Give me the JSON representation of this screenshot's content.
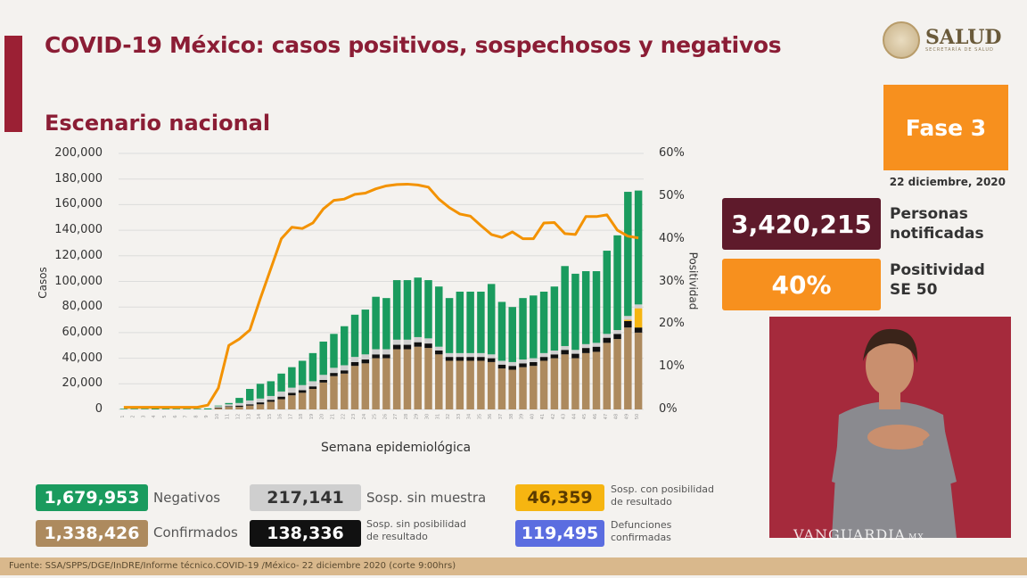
{
  "header": {
    "title": "COVID-19 México: casos positivos, sospechosos y negativos",
    "subtitle": "Escenario nacional",
    "logo_text": "SALUD",
    "logo_small": "SECRETARÍA DE SALUD"
  },
  "side_panel": {
    "phase": "Fase 3",
    "date": "22 diciembre, 2020",
    "notified_value": "3,420,215",
    "notified_label_1": "Personas",
    "notified_label_2": "notificadas",
    "positivity_value": "40%",
    "positivity_label_1": "Positividad",
    "positivity_label_2": "SE 50",
    "watermark": "VANGUARDIA",
    "watermark_suffix": "MX"
  },
  "legend": [
    {
      "value": "1,679,953",
      "label": "Negativos",
      "color": "#1a9b5e"
    },
    {
      "value": "217,141",
      "label": "Sosp. sin muestra",
      "color": "#cfcfcf"
    },
    {
      "value": "46,359",
      "label": "Sosp. con posibilidad de resultado",
      "label_1": "Sosp. con posibilidad",
      "label_2": "de resultado",
      "color": "#f6b511"
    },
    {
      "value": "1,338,426",
      "label": "Confirmados",
      "color": "#ad8a5e"
    },
    {
      "value": "138,336",
      "label": "Sosp. sin posibilidad de resultado",
      "label_1": "Sosp. sin posibilidad",
      "label_2": "de resultado",
      "color": "#111111"
    },
    {
      "value": "119,495",
      "label": "Defunciones confirmadas",
      "label_1": "Defunciones",
      "label_2": "confirmadas",
      "color": "#5b6de0"
    }
  ],
  "footer": "Fuente: SSA/SPPS/DGE/InDRE/Informe técnico.COVID-19 /México- 22 diciembre 2020 (corte 9:00hrs)",
  "chart_data": {
    "type": "bar",
    "stacked": true,
    "xlabel": "Semana epidemiológica",
    "ylabel": "Casos",
    "y2label": "Positividad",
    "ylim": [
      0,
      200000
    ],
    "y2lim": [
      0,
      60
    ],
    "yticks": [
      "0",
      "20,000",
      "40,000",
      "60,000",
      "80,000",
      "100,000",
      "120,000",
      "140,000",
      "160,000",
      "180,000",
      "200,000"
    ],
    "y2ticks": [
      "0%",
      "10%",
      "20%",
      "30%",
      "40%",
      "50%",
      "60%"
    ],
    "grid": true,
    "categories": [
      1,
      2,
      3,
      4,
      5,
      6,
      7,
      8,
      9,
      10,
      11,
      12,
      13,
      14,
      15,
      16,
      17,
      18,
      19,
      20,
      21,
      22,
      23,
      24,
      25,
      26,
      27,
      28,
      29,
      30,
      31,
      32,
      33,
      34,
      35,
      36,
      37,
      38,
      39,
      40,
      41,
      42,
      43,
      44,
      45,
      46,
      47,
      48,
      49,
      50
    ],
    "series": [
      {
        "name": "Confirmados",
        "color": "#ad8a5e",
        "values": [
          0,
          0,
          0,
          0,
          0,
          0,
          0,
          0,
          0,
          1000,
          2000,
          2000,
          3000,
          4000,
          6000,
          8000,
          11000,
          13000,
          16000,
          21000,
          26000,
          28000,
          34000,
          36000,
          40000,
          40000,
          47000,
          47000,
          49000,
          48000,
          43000,
          38000,
          38000,
          38000,
          38000,
          37000,
          32000,
          31000,
          33000,
          34000,
          38000,
          40000,
          43000,
          40000,
          44000,
          45000,
          52000,
          55000,
          64000,
          60000
        ]
      },
      {
        "name": "Sosp. sin posibilidad de resultado",
        "color": "#111111",
        "values": [
          0,
          0,
          0,
          0,
          0,
          0,
          0,
          0,
          0,
          500,
          500,
          1000,
          1000,
          1500,
          1500,
          2000,
          2000,
          2000,
          2000,
          2000,
          2500,
          2500,
          3000,
          3000,
          3000,
          3000,
          3500,
          3500,
          3500,
          3500,
          3000,
          3000,
          3000,
          3000,
          3000,
          3000,
          3000,
          3000,
          3000,
          3000,
          3000,
          3000,
          3500,
          3500,
          4000,
          4000,
          4000,
          4000,
          5000,
          4000
        ]
      },
      {
        "name": "Sosp. con posibilidad de resultado",
        "color": "#f6b511",
        "values": [
          0,
          0,
          0,
          0,
          0,
          0,
          0,
          0,
          0,
          0,
          0,
          0,
          0,
          0,
          0,
          0,
          0,
          0,
          0,
          0,
          0,
          0,
          0,
          0,
          0,
          0,
          0,
          0,
          0,
          0,
          0,
          0,
          0,
          0,
          0,
          0,
          0,
          0,
          0,
          0,
          0,
          0,
          0,
          0,
          0,
          0,
          0,
          0,
          1000,
          15000
        ]
      },
      {
        "name": "Sosp. sin muestra",
        "color": "#cfcfcf",
        "values": [
          0,
          0,
          0,
          0,
          0,
          0,
          0,
          0,
          0,
          1000,
          1500,
          2000,
          3000,
          3000,
          3000,
          4000,
          4000,
          4000,
          4000,
          4000,
          4000,
          4000,
          4000,
          4000,
          4000,
          4000,
          4000,
          4000,
          4000,
          4000,
          3000,
          3000,
          3000,
          3000,
          3000,
          3000,
          3000,
          3000,
          3000,
          3000,
          3000,
          3000,
          3000,
          3000,
          3000,
          3000,
          3000,
          3000,
          3000,
          3000
        ]
      },
      {
        "name": "Negativos",
        "color": "#1a9b5e",
        "values": [
          500,
          500,
          500,
          800,
          600,
          500,
          500,
          500,
          800,
          500,
          1000,
          4000,
          9000,
          11500,
          11500,
          14000,
          16000,
          19000,
          22000,
          26000,
          26500,
          30500,
          33000,
          35000,
          41000,
          40000,
          46500,
          46500,
          46500,
          45500,
          47000,
          43000,
          48000,
          48000,
          48000,
          55000,
          46000,
          43000,
          48000,
          49000,
          48000,
          50000,
          62500,
          59500,
          57000,
          56000,
          65000,
          74000,
          97000,
          89000
        ]
      }
    ],
    "line": {
      "name": "Positividad",
      "color": "#f39200",
      "unit": "%",
      "values": [
        0.5,
        0.5,
        0.5,
        0.5,
        0.5,
        0.5,
        0.5,
        0.5,
        1,
        5,
        15,
        16.5,
        18.6,
        26,
        33,
        40,
        42.7,
        42.4,
        43.7,
        47,
        49,
        49.3,
        50.4,
        50.7,
        51.7,
        52.4,
        52.7,
        52.8,
        52.6,
        52.1,
        49.3,
        47.3,
        45.8,
        45.3,
        43.1,
        41,
        40.3,
        41.6,
        40,
        40,
        43.7,
        43.8,
        41.2,
        41,
        45.2,
        45.2,
        45.6,
        42,
        40.6,
        40.2
      ]
    }
  }
}
